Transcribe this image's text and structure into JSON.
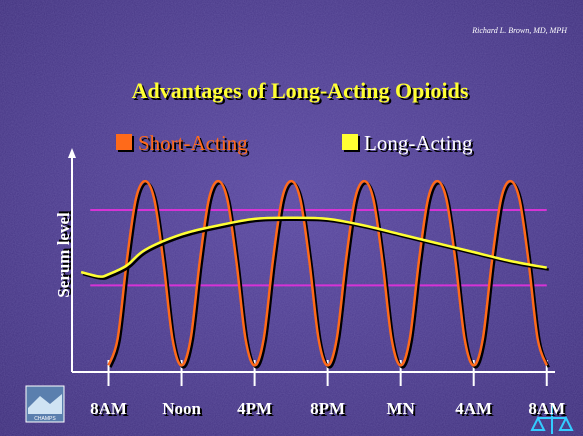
{
  "author": "Richard L. Brown, MD, MPH",
  "logo_text": "CHAMPS",
  "chart_data": {
    "type": "line",
    "title": "Advantages of Long-Acting Opioids",
    "y_label": "Serum level",
    "xlim": [
      -2,
      25
    ],
    "ylim": [
      0,
      100
    ],
    "xticks": [
      {
        "value": 0,
        "label": "8AM"
      },
      {
        "value": 4,
        "label": "Noon"
      },
      {
        "value": 8,
        "label": "4PM"
      },
      {
        "value": 12,
        "label": "8PM"
      },
      {
        "value": 16,
        "label": "MN"
      },
      {
        "value": 20,
        "label": "4AM"
      },
      {
        "value": 24,
        "label": "8AM"
      }
    ],
    "hlines": [
      73,
      39
    ],
    "hline_color": "#d633d6",
    "series": [
      {
        "name": "Short-Acting",
        "color": "#ff6a1a",
        "x": [
          0,
          0.5,
          1,
          1.5,
          2,
          2.5,
          3,
          3.5,
          4,
          4.5,
          5,
          5.5,
          6,
          6.5,
          7,
          7.5,
          8,
          8.5,
          9,
          9.5,
          10,
          10.5,
          11,
          11.5,
          12,
          12.5,
          13,
          13.5,
          14,
          14.5,
          15,
          15.5,
          16,
          16.5,
          17,
          17.5,
          18,
          18.5,
          19,
          19.5,
          20,
          20.5,
          21,
          21.5,
          22,
          22.5,
          23,
          23.5,
          24
        ],
        "values": [
          3,
          15,
          50,
          78,
          86,
          78,
          50,
          15,
          3,
          15,
          50,
          78,
          86,
          78,
          50,
          15,
          3,
          15,
          50,
          78,
          86,
          78,
          50,
          15,
          3,
          15,
          50,
          78,
          86,
          78,
          50,
          15,
          3,
          15,
          50,
          78,
          86,
          78,
          50,
          15,
          3,
          15,
          50,
          78,
          86,
          78,
          50,
          15,
          3
        ]
      },
      {
        "name": "Long-Acting",
        "color": "#ffff33",
        "x": [
          -1.5,
          -0.5,
          0,
          1,
          2,
          4,
          6,
          8,
          10,
          12,
          14,
          16,
          18,
          20,
          22,
          24
        ],
        "values": [
          45,
          43,
          44,
          48,
          55,
          62,
          66,
          69,
          69.5,
          69,
          66,
          62,
          58,
          54,
          50,
          47
        ]
      }
    ]
  }
}
